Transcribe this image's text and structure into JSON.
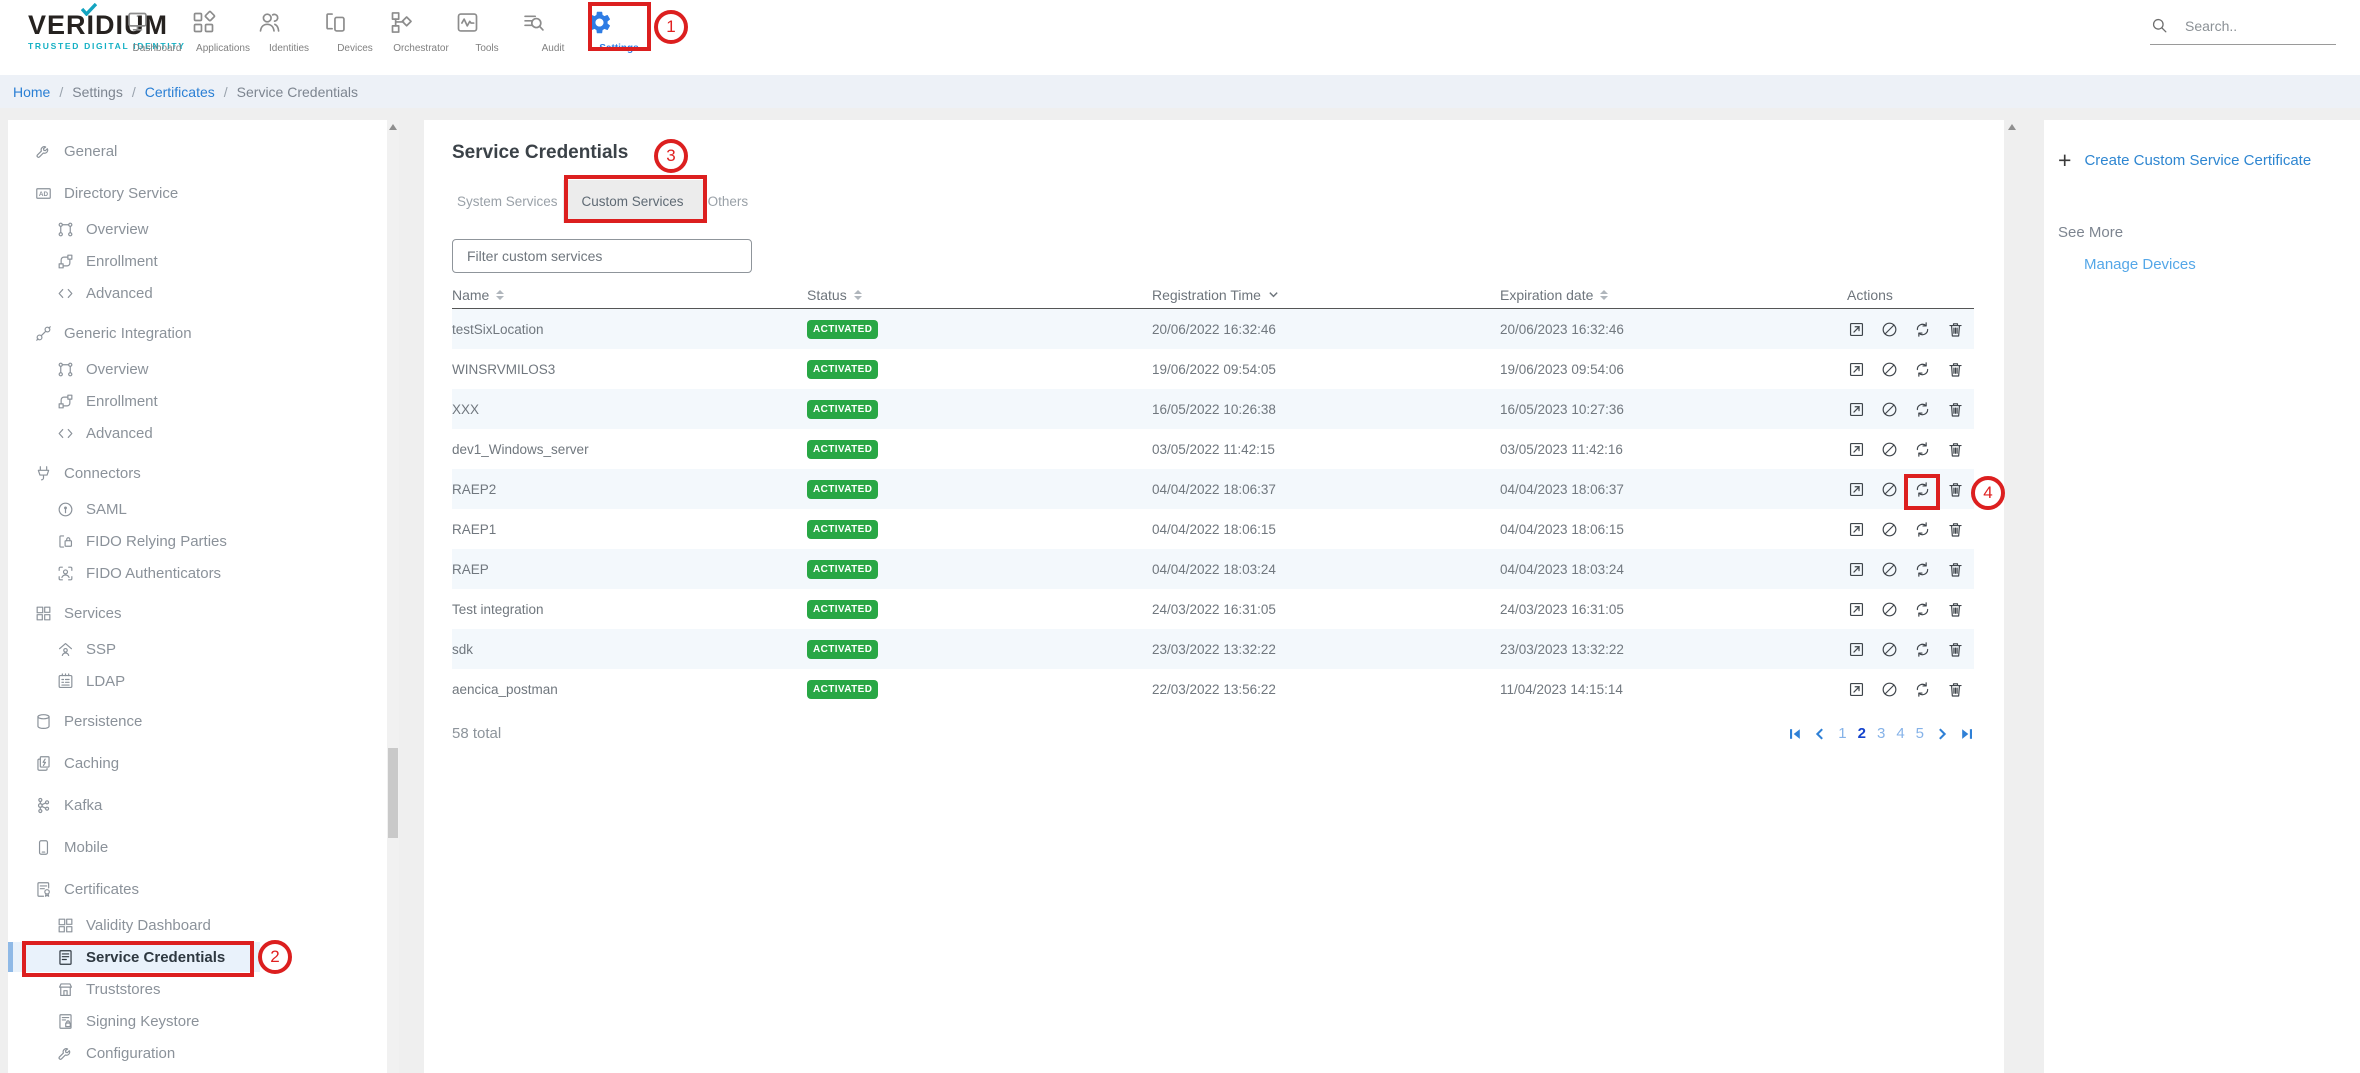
{
  "header": {
    "logo": {
      "title": "VERIDIUM",
      "tagline": "TRUSTED DIGITAL IDENTITY"
    },
    "nav": [
      {
        "label": "Dashboard",
        "icon": "monitor-icon",
        "active": false
      },
      {
        "label": "Applications",
        "icon": "apps-icon",
        "active": false
      },
      {
        "label": "Identities",
        "icon": "identities-icon",
        "active": false
      },
      {
        "label": "Devices",
        "icon": "devices-icon",
        "active": false
      },
      {
        "label": "Orchestrator",
        "icon": "orchestrator-icon",
        "active": false
      },
      {
        "label": "Tools",
        "icon": "tools-icon",
        "active": false
      },
      {
        "label": "Audit",
        "icon": "audit-icon",
        "active": false
      },
      {
        "label": "Settings",
        "icon": "gear-icon",
        "active": true
      }
    ],
    "search_placeholder": "Search.."
  },
  "breadcrumb": [
    {
      "label": "Home",
      "type": "link"
    },
    {
      "label": "Settings",
      "type": "plain"
    },
    {
      "label": "Certificates",
      "type": "link"
    },
    {
      "label": "Service Credentials",
      "type": "plain"
    }
  ],
  "sidebar": {
    "items": [
      {
        "label": "General",
        "icon": "wrench-icon",
        "sub": false,
        "selected": false
      },
      {
        "label": "Directory Service",
        "icon": "ad-icon",
        "sub": false,
        "selected": false
      },
      {
        "label": "Overview",
        "icon": "nodes-icon",
        "sub": true,
        "selected": false
      },
      {
        "label": "Enrollment",
        "icon": "flow-icon",
        "sub": true,
        "selected": false
      },
      {
        "label": "Advanced",
        "icon": "code-icon",
        "sub": true,
        "selected": false
      },
      {
        "label": "Generic Integration",
        "icon": "plug-icon",
        "sub": false,
        "selected": false
      },
      {
        "label": "Overview",
        "icon": "nodes-icon",
        "sub": true,
        "selected": false
      },
      {
        "label": "Enrollment",
        "icon": "flow-icon",
        "sub": true,
        "selected": false
      },
      {
        "label": "Advanced",
        "icon": "code-icon",
        "sub": true,
        "selected": false
      },
      {
        "label": "Connectors",
        "icon": "connector-icon",
        "sub": false,
        "selected": false
      },
      {
        "label": "SAML",
        "icon": "keyhole-icon",
        "sub": true,
        "selected": false
      },
      {
        "label": "FIDO Relying Parties",
        "icon": "device-lock-icon",
        "sub": true,
        "selected": false
      },
      {
        "label": "FIDO Authenticators",
        "icon": "face-scan-icon",
        "sub": true,
        "selected": false
      },
      {
        "label": "Services",
        "icon": "grid-icon",
        "sub": false,
        "selected": false
      },
      {
        "label": "SSP",
        "icon": "home-user-icon",
        "sub": true,
        "selected": false
      },
      {
        "label": "LDAP",
        "icon": "address-book-icon",
        "sub": true,
        "selected": false
      },
      {
        "label": "Persistence",
        "icon": "database-icon",
        "sub": false,
        "selected": false
      },
      {
        "label": "Caching",
        "icon": "cache-icon",
        "sub": false,
        "selected": false
      },
      {
        "label": "Kafka",
        "icon": "kafka-icon",
        "sub": false,
        "selected": false
      },
      {
        "label": "Mobile",
        "icon": "mobile-icon",
        "sub": false,
        "selected": false
      },
      {
        "label": "Certificates",
        "icon": "certificate-icon",
        "sub": false,
        "selected": false
      },
      {
        "label": "Validity Dashboard",
        "icon": "grid-icon",
        "sub": true,
        "selected": false
      },
      {
        "label": "Service Credentials",
        "icon": "document-icon",
        "sub": true,
        "selected": true
      },
      {
        "label": "Truststores",
        "icon": "store-icon",
        "sub": true,
        "selected": false
      },
      {
        "label": "Signing Keystore",
        "icon": "keystore-icon",
        "sub": true,
        "selected": false
      },
      {
        "label": "Configuration",
        "icon": "wrench-icon",
        "sub": true,
        "selected": false
      }
    ]
  },
  "main": {
    "title": "Service Credentials",
    "tabs": [
      {
        "label": "System Services",
        "selected": false
      },
      {
        "label": "Custom Services",
        "selected": true
      },
      {
        "label": "Others",
        "selected": false
      }
    ],
    "filter_placeholder": "Filter custom services",
    "table": {
      "columns": [
        "Name",
        "Status",
        "Registration Time",
        "Expiration date",
        "Actions"
      ],
      "action_icons": [
        "export-icon",
        "block-icon",
        "renew-icon",
        "delete-icon"
      ],
      "rows": [
        {
          "name": "testSixLocation",
          "status": "ACTIVATED",
          "registration": "20/06/2022 16:32:46",
          "expiration": "20/06/2023 16:32:46"
        },
        {
          "name": "WINSRVMILOS3",
          "status": "ACTIVATED",
          "registration": "19/06/2022 09:54:05",
          "expiration": "19/06/2023 09:54:06"
        },
        {
          "name": "XXX",
          "status": "ACTIVATED",
          "registration": "16/05/2022 10:26:38",
          "expiration": "16/05/2023 10:27:36"
        },
        {
          "name": "dev1_Windows_server",
          "status": "ACTIVATED",
          "registration": "03/05/2022 11:42:15",
          "expiration": "03/05/2023 11:42:16"
        },
        {
          "name": "RAEP2",
          "status": "ACTIVATED",
          "registration": "04/04/2022 18:06:37",
          "expiration": "04/04/2023 18:06:37"
        },
        {
          "name": "RAEP1",
          "status": "ACTIVATED",
          "registration": "04/04/2022 18:06:15",
          "expiration": "04/04/2023 18:06:15"
        },
        {
          "name": "RAEP",
          "status": "ACTIVATED",
          "registration": "04/04/2022 18:03:24",
          "expiration": "04/04/2023 18:03:24"
        },
        {
          "name": "Test integration",
          "status": "ACTIVATED",
          "registration": "24/03/2022 16:31:05",
          "expiration": "24/03/2023 16:31:05"
        },
        {
          "name": "sdk",
          "status": "ACTIVATED",
          "registration": "23/03/2022 13:32:22",
          "expiration": "23/03/2023 13:32:22"
        },
        {
          "name": "aencica_postman",
          "status": "ACTIVATED",
          "registration": "22/03/2022 13:56:22",
          "expiration": "11/04/2023 14:15:14"
        }
      ]
    },
    "total": "58 total",
    "pagination": {
      "pages": [
        "1",
        "2",
        "3",
        "4",
        "5"
      ],
      "current": "2"
    }
  },
  "right_panel": {
    "create_label": "Create Custom Service Certificate",
    "see_more": "See More",
    "manage_devices": "Manage Devices"
  },
  "annotations": [
    "1",
    "2",
    "3",
    "4"
  ],
  "colors": {
    "accent_blue": "#2e7ce4",
    "link_blue": "#2e86d1",
    "badge_green": "#28a745",
    "annotation_red": "#dc1f1f",
    "selected_item_bg": "#e9f2fb",
    "row_alt_bg": "#f3f8fc"
  }
}
